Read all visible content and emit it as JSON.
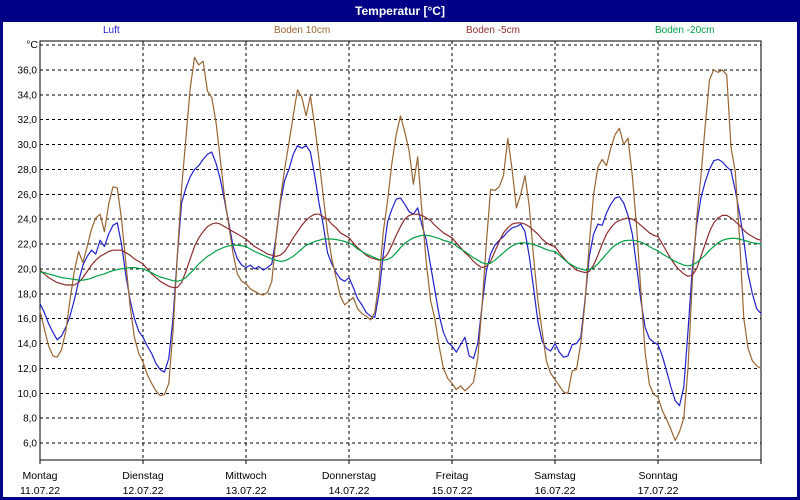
{
  "window": {
    "title": "Temperatur [°C]"
  },
  "chart_data": {
    "type": "line",
    "title": "Temperatur [°C]",
    "grid": true,
    "legend_position": "top",
    "y_axis": {
      "unit_label": "°C",
      "grid_min": 6,
      "grid_max": 38,
      "grid_step": 2,
      "ylim": [
        4.6,
        38.3
      ],
      "tick_values": [
        36,
        34,
        32,
        30,
        28,
        26,
        24,
        22,
        20,
        18,
        16,
        14,
        12,
        10,
        8,
        6
      ],
      "tick_labels": [
        "36,0",
        "34,0",
        "32,0",
        "30,0",
        "28,0",
        "26,0",
        "24,0",
        "22,0",
        "20,0",
        "18,0",
        "16,0",
        "14,0",
        "12,0",
        "10,0",
        "8,0",
        "6,0"
      ]
    },
    "x_axis": {
      "hours_per_day": 24,
      "total_hours": 168,
      "days": [
        {
          "name": "Montag",
          "date": "11.07.22"
        },
        {
          "name": "Dienstag",
          "date": "12.07.22"
        },
        {
          "name": "Mittwoch",
          "date": "13.07.22"
        },
        {
          "name": "Donnerstag",
          "date": "14.07.22"
        },
        {
          "name": "Freitag",
          "date": "15.07.22"
        },
        {
          "name": "Samstag",
          "date": "16.07.22"
        },
        {
          "name": "Sonntag",
          "date": "17.07.22"
        }
      ]
    },
    "series": [
      {
        "name": "Luft",
        "color": "#2222cc",
        "values": [
          17.2,
          16.5,
          15.6,
          14.9,
          14.3,
          14.6,
          15.3,
          16.2,
          17.5,
          19.0,
          20.3,
          21.0,
          21.5,
          21.2,
          22.3,
          21.8,
          22.8,
          23.5,
          23.7,
          22.0,
          19.5,
          17.5,
          16.0,
          15.0,
          14.5,
          13.8,
          13.2,
          12.4,
          11.9,
          11.7,
          12.8,
          16.0,
          21.0,
          25.3,
          26.5,
          27.4,
          28.0,
          28.3,
          28.8,
          29.2,
          29.4,
          28.5,
          27.2,
          25.5,
          23.7,
          21.8,
          20.8,
          20.3,
          20.1,
          20.3,
          20.0,
          20.2,
          19.9,
          20.1,
          20.4,
          22.5,
          25.3,
          27.1,
          28.0,
          29.2,
          29.9,
          29.7,
          29.9,
          29.4,
          27.5,
          25.3,
          23.5,
          21.3,
          20.4,
          19.7,
          19.2,
          19.0,
          19.3,
          18.5,
          17.6,
          17.1,
          16.5,
          16.2,
          16.1,
          18.0,
          21.2,
          23.8,
          24.8,
          25.6,
          25.7,
          25.2,
          24.6,
          24.4,
          24.9,
          23.5,
          22.3,
          20.3,
          18.3,
          16.3,
          14.9,
          14.1,
          13.8,
          13.3,
          13.9,
          14.5,
          13.0,
          12.8,
          14.0,
          17.0,
          19.8,
          21.2,
          21.9,
          22.3,
          22.6,
          23.0,
          23.3,
          23.4,
          23.6,
          23.0,
          21.0,
          18.5,
          15.8,
          14.2,
          13.6,
          13.4,
          14.0,
          13.3,
          12.9,
          13.0,
          13.9,
          14.0,
          14.5,
          17.5,
          21.0,
          22.8,
          23.6,
          23.5,
          24.5,
          25.2,
          25.7,
          25.8,
          25.3,
          24.3,
          22.8,
          20.3,
          17.5,
          15.3,
          14.4,
          14.1,
          13.9,
          13.0,
          11.8,
          10.5,
          9.4,
          9.0,
          10.5,
          15.0,
          20.0,
          23.5,
          25.7,
          27.0,
          28.0,
          28.7,
          28.8,
          28.6,
          28.2,
          27.9,
          26.3,
          24.5,
          22.3,
          19.6,
          18.0,
          16.8,
          16.4
        ]
      },
      {
        "name": "Boden 10cm",
        "color": "#996633",
        "values": [
          16.6,
          15.2,
          13.8,
          13.0,
          12.9,
          13.5,
          15.0,
          17.5,
          19.8,
          21.4,
          20.5,
          21.8,
          23.2,
          24.1,
          24.4,
          23.0,
          25.2,
          26.6,
          26.5,
          24.0,
          20.5,
          17.0,
          14.5,
          13.2,
          12.5,
          11.5,
          10.8,
          10.2,
          9.8,
          9.9,
          10.8,
          15.0,
          21.0,
          26.5,
          30.5,
          34.5,
          37.0,
          36.4,
          36.7,
          34.3,
          33.8,
          31.8,
          28.8,
          25.8,
          23.5,
          21.2,
          19.6,
          19.0,
          18.8,
          18.4,
          18.2,
          18.0,
          17.9,
          18.1,
          19.0,
          22.5,
          25.5,
          28.0,
          30.1,
          32.3,
          34.4,
          33.8,
          32.3,
          33.9,
          31.5,
          28.8,
          25.8,
          23.0,
          20.8,
          19.3,
          17.8,
          17.1,
          17.4,
          17.7,
          16.8,
          16.4,
          16.2,
          15.9,
          16.5,
          19.0,
          23.0,
          25.5,
          28.5,
          30.8,
          32.3,
          31.0,
          29.5,
          26.8,
          29.0,
          24.5,
          20.5,
          17.5,
          16.0,
          13.8,
          12.0,
          11.2,
          10.8,
          10.3,
          10.6,
          10.2,
          10.5,
          10.9,
          12.8,
          17.0,
          22.0,
          26.4,
          26.3,
          26.6,
          27.5,
          30.5,
          28.0,
          24.9,
          26.0,
          27.5,
          25.0,
          21.0,
          17.5,
          15.0,
          12.6,
          11.6,
          11.1,
          10.6,
          10.1,
          10.0,
          11.8,
          11.9,
          14.0,
          17.3,
          22.0,
          26.0,
          28.2,
          28.8,
          28.3,
          29.7,
          30.8,
          31.3,
          30.0,
          30.5,
          27.5,
          23.5,
          18.3,
          13.3,
          10.7,
          9.9,
          9.7,
          8.6,
          7.9,
          7.1,
          6.2,
          6.9,
          8.0,
          12.0,
          19.0,
          24.0,
          27.4,
          31.5,
          35.2,
          36.0,
          35.8,
          36.0,
          35.6,
          29.8,
          27.8,
          22.5,
          16.0,
          13.6,
          12.6,
          12.2,
          12.0
        ]
      },
      {
        "name": "Boden -5cm",
        "color": "#8e2e2e",
        "values": [
          19.9,
          19.6,
          19.3,
          19.1,
          18.9,
          18.8,
          18.7,
          18.7,
          18.7,
          18.9,
          19.3,
          19.8,
          20.3,
          20.7,
          21.0,
          21.2,
          21.4,
          21.5,
          21.5,
          21.5,
          21.3,
          21.1,
          20.8,
          20.6,
          20.4,
          20.0,
          19.6,
          19.3,
          19.0,
          18.8,
          18.6,
          18.5,
          18.5,
          18.9,
          19.8,
          20.8,
          21.8,
          22.5,
          23.0,
          23.4,
          23.6,
          23.7,
          23.6,
          23.4,
          23.2,
          23.0,
          22.8,
          22.6,
          22.4,
          22.1,
          21.8,
          21.6,
          21.4,
          21.2,
          21.1,
          21.0,
          21.1,
          21.4,
          21.9,
          22.5,
          23.0,
          23.5,
          23.9,
          24.2,
          24.4,
          24.4,
          24.2,
          24.0,
          23.6,
          23.3,
          22.9,
          22.7,
          22.5,
          22.1,
          21.7,
          21.4,
          21.1,
          20.9,
          20.8,
          20.7,
          20.8,
          21.2,
          21.9,
          22.7,
          23.4,
          24.0,
          24.3,
          24.4,
          24.4,
          24.3,
          24.1,
          23.9,
          23.5,
          23.2,
          22.9,
          22.7,
          22.5,
          22.1,
          21.7,
          21.3,
          21.0,
          20.6,
          20.3,
          20.1,
          20.2,
          20.6,
          21.4,
          22.2,
          22.9,
          23.3,
          23.6,
          23.7,
          23.7,
          23.6,
          23.4,
          23.1,
          22.8,
          22.4,
          22.1,
          21.9,
          21.8,
          21.3,
          20.9,
          20.5,
          20.2,
          19.9,
          19.8,
          19.7,
          19.8,
          20.3,
          21.1,
          22.0,
          22.8,
          23.3,
          23.7,
          23.9,
          24.0,
          24.1,
          24.0,
          23.8,
          23.5,
          23.2,
          22.9,
          22.7,
          22.6,
          22.0,
          21.4,
          20.8,
          20.3,
          19.9,
          19.6,
          19.4,
          19.5,
          20.0,
          21.0,
          22.0,
          23.0,
          23.7,
          24.1,
          24.3,
          24.3,
          24.1,
          23.8,
          23.5,
          23.1,
          22.8,
          22.6,
          22.4,
          22.3
        ]
      },
      {
        "name": "Boden -20cm",
        "color": "#00a045",
        "values": [
          19.75,
          19.7,
          19.6,
          19.5,
          19.4,
          19.3,
          19.25,
          19.2,
          19.15,
          19.1,
          19.1,
          19.15,
          19.25,
          19.4,
          19.5,
          19.6,
          19.75,
          19.85,
          19.95,
          20.0,
          20.05,
          20.1,
          20.1,
          20.05,
          20.0,
          19.85,
          19.7,
          19.5,
          19.35,
          19.25,
          19.15,
          19.05,
          19.0,
          19.1,
          19.3,
          19.65,
          20.0,
          20.4,
          20.7,
          21.0,
          21.2,
          21.45,
          21.6,
          21.75,
          21.85,
          21.9,
          21.9,
          21.85,
          21.8,
          21.6,
          21.4,
          21.25,
          21.1,
          20.95,
          20.8,
          20.7,
          20.6,
          20.65,
          20.8,
          21.0,
          21.3,
          21.6,
          21.9,
          22.05,
          22.2,
          22.3,
          22.4,
          22.4,
          22.4,
          22.35,
          22.3,
          22.2,
          22.1,
          21.9,
          21.6,
          21.4,
          21.2,
          21.05,
          20.9,
          20.75,
          20.7,
          20.75,
          20.95,
          21.3,
          21.7,
          22.05,
          22.3,
          22.5,
          22.6,
          22.7,
          22.7,
          22.65,
          22.55,
          22.45,
          22.3,
          22.2,
          22.1,
          21.85,
          21.6,
          21.4,
          21.15,
          20.9,
          20.7,
          20.5,
          20.4,
          20.45,
          20.7,
          21.0,
          21.3,
          21.6,
          21.85,
          22.0,
          22.1,
          22.1,
          22.05,
          21.95,
          21.85,
          21.7,
          21.55,
          21.45,
          21.4,
          21.1,
          20.8,
          20.5,
          20.3,
          20.1,
          20.0,
          19.9,
          19.95,
          20.1,
          20.4,
          20.8,
          21.2,
          21.6,
          21.9,
          22.1,
          22.25,
          22.3,
          22.3,
          22.25,
          22.15,
          22.0,
          21.8,
          21.6,
          21.45,
          21.2,
          21.0,
          20.8,
          20.6,
          20.45,
          20.3,
          20.25,
          20.3,
          20.5,
          20.8,
          21.1,
          21.5,
          21.8,
          22.1,
          22.3,
          22.4,
          22.45,
          22.45,
          22.4,
          22.3,
          22.2,
          22.1,
          22.05,
          22.0
        ]
      }
    ]
  }
}
